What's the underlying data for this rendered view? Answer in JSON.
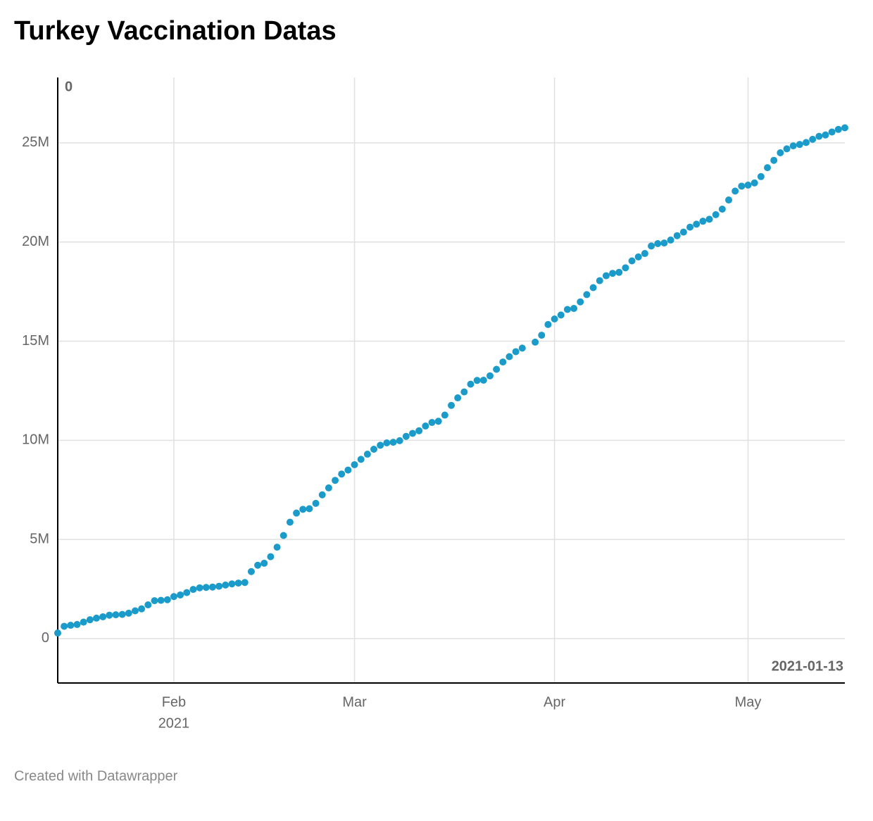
{
  "chart_data": {
    "type": "scatter",
    "title": "Turkey Vaccination Datas",
    "footer": "Created with Datawrapper",
    "annotations": [
      "0",
      "2021-01-13"
    ],
    "color": "#1b9bc9",
    "x": [
      "2021-01-14",
      "2021-01-15",
      "2021-01-16",
      "2021-01-17",
      "2021-01-18",
      "2021-01-19",
      "2021-01-20",
      "2021-01-21",
      "2021-01-22",
      "2021-01-23",
      "2021-01-24",
      "2021-01-25",
      "2021-01-26",
      "2021-01-27",
      "2021-01-28",
      "2021-01-29",
      "2021-01-30",
      "2021-01-31",
      "2021-02-01",
      "2021-02-02",
      "2021-02-03",
      "2021-02-04",
      "2021-02-05",
      "2021-02-06",
      "2021-02-07",
      "2021-02-08",
      "2021-02-09",
      "2021-02-10",
      "2021-02-11",
      "2021-02-12",
      "2021-02-13",
      "2021-02-14",
      "2021-02-15",
      "2021-02-16",
      "2021-02-17",
      "2021-02-18",
      "2021-02-19",
      "2021-02-20",
      "2021-02-21",
      "2021-02-22",
      "2021-02-23",
      "2021-02-24",
      "2021-02-25",
      "2021-02-26",
      "2021-02-27",
      "2021-02-28",
      "2021-03-01",
      "2021-03-02",
      "2021-03-03",
      "2021-03-04",
      "2021-03-05",
      "2021-03-06",
      "2021-03-07",
      "2021-03-08",
      "2021-03-09",
      "2021-03-10",
      "2021-03-11",
      "2021-03-12",
      "2021-03-13",
      "2021-03-14",
      "2021-03-15",
      "2021-03-16",
      "2021-03-17",
      "2021-03-18",
      "2021-03-19",
      "2021-03-20",
      "2021-03-21",
      "2021-03-22",
      "2021-03-23",
      "2021-03-24",
      "2021-03-25",
      "2021-03-26",
      "2021-03-27",
      "2021-03-29",
      "2021-03-30",
      "2021-03-31",
      "2021-04-01",
      "2021-04-02",
      "2021-04-03",
      "2021-04-04",
      "2021-04-05",
      "2021-04-06",
      "2021-04-07",
      "2021-04-08",
      "2021-04-09",
      "2021-04-10",
      "2021-04-11",
      "2021-04-12",
      "2021-04-13",
      "2021-04-14",
      "2021-04-15",
      "2021-04-16",
      "2021-04-17",
      "2021-04-18",
      "2021-04-19",
      "2021-04-20",
      "2021-04-21",
      "2021-04-22",
      "2021-04-23",
      "2021-04-24",
      "2021-04-25",
      "2021-04-26",
      "2021-04-27",
      "2021-04-28",
      "2021-04-29",
      "2021-04-30",
      "2021-05-01",
      "2021-05-02",
      "2021-05-03",
      "2021-05-04",
      "2021-05-05",
      "2021-05-06",
      "2021-05-07",
      "2021-05-08",
      "2021-05-09",
      "2021-05-10",
      "2021-05-11",
      "2021-05-12",
      "2021-05-13",
      "2021-05-14",
      "2021-05-15",
      "2021-05-16"
    ],
    "values": [
      0.28,
      0.62,
      0.67,
      0.71,
      0.83,
      0.95,
      1.03,
      1.1,
      1.18,
      1.2,
      1.22,
      1.28,
      1.4,
      1.5,
      1.7,
      1.91,
      1.93,
      1.96,
      2.12,
      2.2,
      2.32,
      2.48,
      2.56,
      2.58,
      2.6,
      2.64,
      2.7,
      2.76,
      2.8,
      2.83,
      3.38,
      3.7,
      3.8,
      4.13,
      4.61,
      5.2,
      5.87,
      6.33,
      6.52,
      6.55,
      6.82,
      7.25,
      7.6,
      7.98,
      8.3,
      8.5,
      8.77,
      9.04,
      9.3,
      9.55,
      9.75,
      9.87,
      9.9,
      9.98,
      10.2,
      10.35,
      10.48,
      10.72,
      10.9,
      10.96,
      11.27,
      11.76,
      12.14,
      12.44,
      12.83,
      13.02,
      13.03,
      13.25,
      13.58,
      13.95,
      14.22,
      14.47,
      14.65,
      14.95,
      15.3,
      15.84,
      16.12,
      16.32,
      16.6,
      16.65,
      16.98,
      17.35,
      17.7,
      18.05,
      18.3,
      18.42,
      18.47,
      18.7,
      19.05,
      19.25,
      19.42,
      19.8,
      19.92,
      19.95,
      20.1,
      20.32,
      20.5,
      20.75,
      20.9,
      21.05,
      21.15,
      21.38,
      21.66,
      22.12,
      22.57,
      22.82,
      22.87,
      22.98,
      23.3,
      23.75,
      24.12,
      24.5,
      24.7,
      24.85,
      24.92,
      25.02,
      25.18,
      25.33,
      25.4,
      25.55,
      25.68,
      25.76
    ],
    "xlim": [
      "2021-01-14",
      "2021-05-16"
    ],
    "xticks": [
      {
        "value": "2021-02-01",
        "label": "Feb"
      },
      {
        "value": "2021-03-01",
        "label": "Mar"
      },
      {
        "value": "2021-04-01",
        "label": "Apr"
      },
      {
        "value": "2021-05-01",
        "label": "May"
      }
    ],
    "x_year_label": "2021",
    "ylim": [
      -2.24,
      28.3
    ],
    "yticks": [
      0,
      {
        "value": 5,
        "label": "5M"
      },
      {
        "value": 10,
        "label": "10M"
      },
      {
        "value": 15,
        "label": "15M"
      },
      {
        "value": 20,
        "label": "20M"
      },
      {
        "value": 25,
        "label": "25M"
      }
    ],
    "grid": true
  }
}
